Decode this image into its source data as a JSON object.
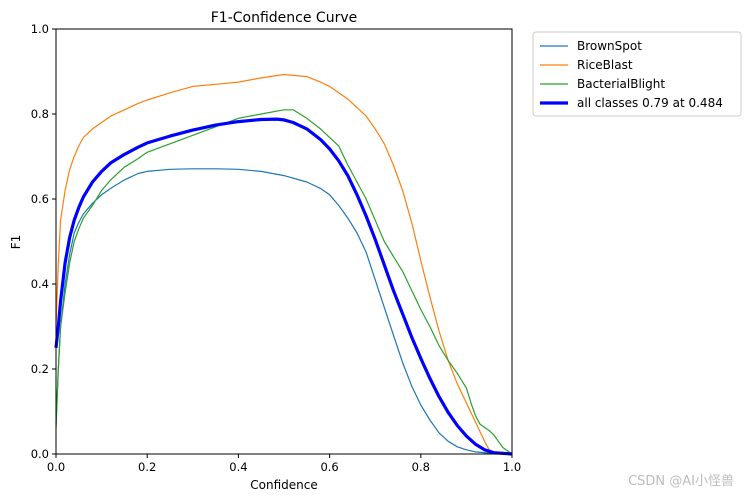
{
  "chart_data": {
    "type": "line",
    "title": "F1-Confidence Curve",
    "xlabel": "Confidence",
    "ylabel": "F1",
    "xlim": [
      0.0,
      1.0
    ],
    "ylim": [
      0.0,
      1.0
    ],
    "xticks": [
      "0.0",
      "0.2",
      "0.4",
      "0.6",
      "0.8",
      "1.0"
    ],
    "yticks": [
      "0.0",
      "0.2",
      "0.4",
      "0.6",
      "0.8",
      "1.0"
    ],
    "grid": false,
    "legend_position": "outside-top-right",
    "series": [
      {
        "name": "BrownSpot",
        "color": "#1f77b4",
        "bold": false,
        "points": [
          [
            0.0,
            0.07
          ],
          [
            0.005,
            0.2
          ],
          [
            0.01,
            0.3
          ],
          [
            0.02,
            0.4
          ],
          [
            0.03,
            0.47
          ],
          [
            0.04,
            0.52
          ],
          [
            0.05,
            0.545
          ],
          [
            0.06,
            0.565
          ],
          [
            0.08,
            0.59
          ],
          [
            0.1,
            0.61
          ],
          [
            0.12,
            0.625
          ],
          [
            0.15,
            0.645
          ],
          [
            0.18,
            0.66
          ],
          [
            0.2,
            0.665
          ],
          [
            0.25,
            0.67
          ],
          [
            0.3,
            0.671
          ],
          [
            0.35,
            0.671
          ],
          [
            0.4,
            0.67
          ],
          [
            0.45,
            0.665
          ],
          [
            0.5,
            0.655
          ],
          [
            0.55,
            0.64
          ],
          [
            0.58,
            0.625
          ],
          [
            0.6,
            0.61
          ],
          [
            0.62,
            0.585
          ],
          [
            0.64,
            0.555
          ],
          [
            0.66,
            0.52
          ],
          [
            0.68,
            0.475
          ],
          [
            0.7,
            0.41
          ],
          [
            0.72,
            0.345
          ],
          [
            0.74,
            0.28
          ],
          [
            0.76,
            0.215
          ],
          [
            0.78,
            0.16
          ],
          [
            0.8,
            0.115
          ],
          [
            0.82,
            0.08
          ],
          [
            0.84,
            0.05
          ],
          [
            0.86,
            0.03
          ],
          [
            0.88,
            0.017
          ],
          [
            0.9,
            0.01
          ],
          [
            0.92,
            0.005
          ],
          [
            0.95,
            0.002
          ],
          [
            1.0,
            0.0
          ]
        ]
      },
      {
        "name": "RiceBlast",
        "color": "#ff7f0e",
        "bold": false,
        "points": [
          [
            0.0,
            0.3
          ],
          [
            0.005,
            0.45
          ],
          [
            0.01,
            0.55
          ],
          [
            0.02,
            0.62
          ],
          [
            0.03,
            0.67
          ],
          [
            0.04,
            0.7
          ],
          [
            0.05,
            0.725
          ],
          [
            0.06,
            0.745
          ],
          [
            0.08,
            0.765
          ],
          [
            0.1,
            0.78
          ],
          [
            0.12,
            0.795
          ],
          [
            0.15,
            0.81
          ],
          [
            0.18,
            0.825
          ],
          [
            0.2,
            0.833
          ],
          [
            0.25,
            0.85
          ],
          [
            0.3,
            0.865
          ],
          [
            0.35,
            0.87
          ],
          [
            0.4,
            0.875
          ],
          [
            0.45,
            0.885
          ],
          [
            0.5,
            0.893
          ],
          [
            0.55,
            0.888
          ],
          [
            0.58,
            0.875
          ],
          [
            0.6,
            0.865
          ],
          [
            0.62,
            0.85
          ],
          [
            0.64,
            0.835
          ],
          [
            0.66,
            0.815
          ],
          [
            0.68,
            0.795
          ],
          [
            0.7,
            0.765
          ],
          [
            0.72,
            0.73
          ],
          [
            0.74,
            0.68
          ],
          [
            0.76,
            0.62
          ],
          [
            0.78,
            0.545
          ],
          [
            0.8,
            0.455
          ],
          [
            0.82,
            0.37
          ],
          [
            0.84,
            0.29
          ],
          [
            0.86,
            0.22
          ],
          [
            0.88,
            0.165
          ],
          [
            0.9,
            0.12
          ],
          [
            0.92,
            0.075
          ],
          [
            0.94,
            0.03
          ],
          [
            0.95,
            0.01
          ],
          [
            0.96,
            0.0
          ],
          [
            1.0,
            0.0
          ]
        ]
      },
      {
        "name": "BacterialBlight",
        "color": "#2ca02c",
        "bold": false,
        "points": [
          [
            0.0,
            0.06
          ],
          [
            0.005,
            0.2
          ],
          [
            0.01,
            0.3
          ],
          [
            0.02,
            0.38
          ],
          [
            0.03,
            0.45
          ],
          [
            0.04,
            0.5
          ],
          [
            0.05,
            0.53
          ],
          [
            0.06,
            0.555
          ],
          [
            0.08,
            0.585
          ],
          [
            0.1,
            0.62
          ],
          [
            0.12,
            0.645
          ],
          [
            0.15,
            0.675
          ],
          [
            0.18,
            0.695
          ],
          [
            0.2,
            0.71
          ],
          [
            0.25,
            0.73
          ],
          [
            0.3,
            0.75
          ],
          [
            0.35,
            0.77
          ],
          [
            0.4,
            0.79
          ],
          [
            0.45,
            0.8
          ],
          [
            0.5,
            0.81
          ],
          [
            0.52,
            0.81
          ],
          [
            0.55,
            0.79
          ],
          [
            0.58,
            0.765
          ],
          [
            0.6,
            0.745
          ],
          [
            0.62,
            0.725
          ],
          [
            0.64,
            0.68
          ],
          [
            0.66,
            0.64
          ],
          [
            0.68,
            0.6
          ],
          [
            0.7,
            0.55
          ],
          [
            0.72,
            0.5
          ],
          [
            0.74,
            0.465
          ],
          [
            0.76,
            0.43
          ],
          [
            0.78,
            0.385
          ],
          [
            0.8,
            0.34
          ],
          [
            0.82,
            0.3
          ],
          [
            0.84,
            0.255
          ],
          [
            0.86,
            0.22
          ],
          [
            0.88,
            0.19
          ],
          [
            0.9,
            0.155
          ],
          [
            0.91,
            0.12
          ],
          [
            0.92,
            0.09
          ],
          [
            0.93,
            0.07
          ],
          [
            0.95,
            0.055
          ],
          [
            0.96,
            0.045
          ],
          [
            0.97,
            0.03
          ],
          [
            0.98,
            0.015
          ],
          [
            1.0,
            0.0
          ]
        ]
      },
      {
        "name": "all classes 0.79 at 0.484",
        "color": "#0000ff",
        "bold": true,
        "points": [
          [
            0.0,
            0.25
          ],
          [
            0.005,
            0.3
          ],
          [
            0.01,
            0.36
          ],
          [
            0.02,
            0.45
          ],
          [
            0.03,
            0.51
          ],
          [
            0.04,
            0.55
          ],
          [
            0.05,
            0.58
          ],
          [
            0.06,
            0.605
          ],
          [
            0.08,
            0.64
          ],
          [
            0.1,
            0.665
          ],
          [
            0.12,
            0.685
          ],
          [
            0.15,
            0.705
          ],
          [
            0.18,
            0.722
          ],
          [
            0.2,
            0.732
          ],
          [
            0.25,
            0.748
          ],
          [
            0.3,
            0.762
          ],
          [
            0.35,
            0.774
          ],
          [
            0.4,
            0.782
          ],
          [
            0.45,
            0.787
          ],
          [
            0.484,
            0.788
          ],
          [
            0.5,
            0.786
          ],
          [
            0.52,
            0.78
          ],
          [
            0.55,
            0.765
          ],
          [
            0.58,
            0.74
          ],
          [
            0.6,
            0.718
          ],
          [
            0.62,
            0.69
          ],
          [
            0.64,
            0.655
          ],
          [
            0.66,
            0.61
          ],
          [
            0.68,
            0.56
          ],
          [
            0.7,
            0.505
          ],
          [
            0.72,
            0.445
          ],
          [
            0.74,
            0.385
          ],
          [
            0.76,
            0.33
          ],
          [
            0.78,
            0.275
          ],
          [
            0.8,
            0.225
          ],
          [
            0.82,
            0.178
          ],
          [
            0.84,
            0.135
          ],
          [
            0.86,
            0.098
          ],
          [
            0.88,
            0.067
          ],
          [
            0.9,
            0.042
          ],
          [
            0.92,
            0.023
          ],
          [
            0.94,
            0.01
          ],
          [
            0.96,
            0.003
          ],
          [
            1.0,
            0.0
          ]
        ]
      }
    ]
  },
  "watermark": "CSDN @AI小怪兽"
}
